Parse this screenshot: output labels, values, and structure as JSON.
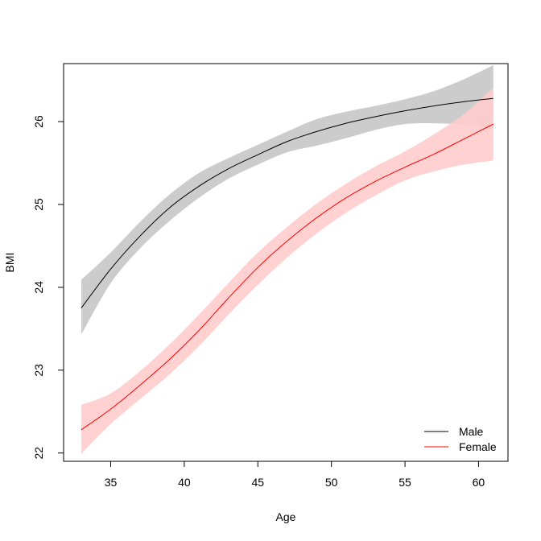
{
  "chart_data": {
    "type": "line",
    "title": "",
    "xlabel": "Age",
    "ylabel": "BMI",
    "xlim": [
      31.8,
      62.0
    ],
    "ylim": [
      21.9,
      26.7
    ],
    "xticks": [
      35,
      40,
      45,
      50,
      55,
      60
    ],
    "yticks": [
      22,
      23,
      24,
      25,
      26
    ],
    "grid": false,
    "legend_position": "bottom-right",
    "x": [
      33,
      35,
      37,
      39,
      41,
      43,
      45,
      47,
      49,
      51,
      53,
      55,
      57,
      59,
      61
    ],
    "series": [
      {
        "name": "Male",
        "color": "#000000",
        "band_color": "#cccccc",
        "values": [
          23.75,
          24.22,
          24.62,
          24.96,
          25.22,
          25.43,
          25.6,
          25.76,
          25.88,
          25.98,
          26.06,
          26.13,
          26.19,
          26.24,
          26.28
        ],
        "lower": [
          23.43,
          24.05,
          24.47,
          24.8,
          25.08,
          25.31,
          25.48,
          25.63,
          25.71,
          25.8,
          25.9,
          25.97,
          25.98,
          25.96,
          25.91
        ],
        "upper": [
          24.09,
          24.42,
          24.79,
          25.12,
          25.38,
          25.56,
          25.72,
          25.88,
          26.03,
          26.12,
          26.19,
          26.27,
          26.37,
          26.51,
          26.68
        ]
      },
      {
        "name": "Female",
        "color": "#ff0000",
        "band_color": "#ffcccc",
        "values": [
          22.28,
          22.53,
          22.82,
          23.13,
          23.48,
          23.87,
          24.24,
          24.56,
          24.84,
          25.08,
          25.28,
          25.45,
          25.61,
          25.79,
          25.97
        ],
        "lower": [
          21.99,
          22.35,
          22.65,
          22.95,
          23.29,
          23.67,
          24.03,
          24.36,
          24.65,
          24.9,
          25.11,
          25.29,
          25.4,
          25.48,
          25.53
        ],
        "upper": [
          22.58,
          22.72,
          22.99,
          23.31,
          23.67,
          24.05,
          24.42,
          24.73,
          25.01,
          25.25,
          25.46,
          25.64,
          25.85,
          26.09,
          26.41
        ]
      }
    ]
  }
}
